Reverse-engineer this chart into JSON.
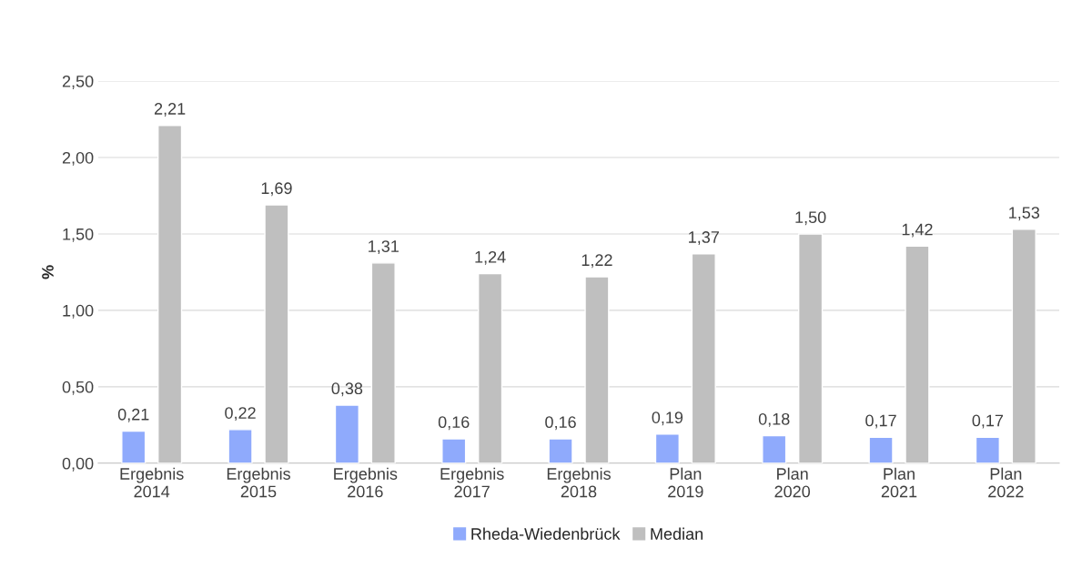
{
  "chart_data": {
    "type": "bar",
    "ylabel": "%",
    "categories": [
      "Ergebnis\n2014",
      "Ergebnis\n2015",
      "Ergebnis\n2016",
      "Ergebnis\n2017",
      "Ergebnis\n2018",
      "Plan\n2019",
      "Plan\n2020",
      "Plan\n2021",
      "Plan\n2022"
    ],
    "series": [
      {
        "name": "Rheda-Wiedenbrück",
        "color": "#8faafc",
        "values": [
          0.21,
          0.22,
          0.38,
          0.16,
          0.16,
          0.19,
          0.18,
          0.17,
          0.17
        ],
        "value_labels": [
          "0,21",
          "0,22",
          "0,38",
          "0,16",
          "0,16",
          "0,19",
          "0,18",
          "0,17",
          "0,17"
        ]
      },
      {
        "name": "Median",
        "color": "#bfbfbf",
        "values": [
          2.21,
          1.69,
          1.31,
          1.24,
          1.22,
          1.37,
          1.5,
          1.42,
          1.53
        ],
        "value_labels": [
          "2,21",
          "1,69",
          "1,31",
          "1,24",
          "1,22",
          "1,37",
          "1,50",
          "1,42",
          "1,53"
        ]
      }
    ],
    "ylim": [
      0,
      2.5
    ],
    "yticks": [
      {
        "value": 0,
        "label": "0,00"
      },
      {
        "value": 0.5,
        "label": "0,50"
      },
      {
        "value": 1,
        "label": "1,00"
      },
      {
        "value": 1.5,
        "label": "1,50"
      },
      {
        "value": 2,
        "label": "2,00"
      },
      {
        "value": 2.5,
        "label": "2,50"
      }
    ],
    "grid": "y",
    "legend": "bottom"
  }
}
